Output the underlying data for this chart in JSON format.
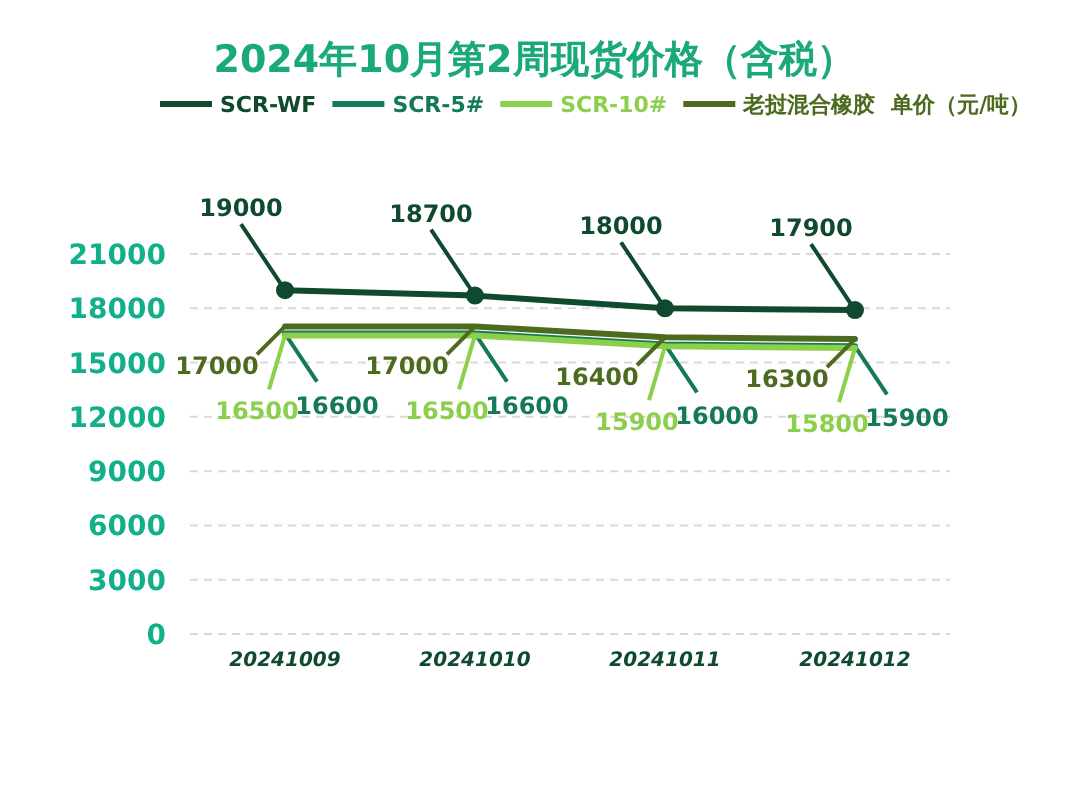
{
  "chart_data": {
    "type": "line",
    "title": "2024年10月第2周现货价格（含税）",
    "annotations": [
      "单价（元/吨）"
    ],
    "categories": [
      "20241009",
      "20241010",
      "20241011",
      "20241012"
    ],
    "series": [
      {
        "name": "SCR-WF",
        "color": "#0f4a2e",
        "values": [
          19000,
          18700,
          18000,
          17900
        ],
        "marker": "circle"
      },
      {
        "name": "SCR-5#",
        "color": "#137a55",
        "values": [
          16600,
          16600,
          16000,
          15900
        ]
      },
      {
        "name": "SCR-10#",
        "color": "#8ccf4a",
        "values": [
          16500,
          16500,
          15900,
          15800
        ]
      },
      {
        "name": "老挝混合橡胶",
        "color": "#4d6b1e",
        "values": [
          17000,
          17000,
          16400,
          16300
        ]
      }
    ],
    "ylim": [
      0,
      21000
    ],
    "yticks": [
      0,
      3000,
      6000,
      9000,
      12000,
      15000,
      18000,
      21000
    ],
    "grid": "y",
    "legend": "top",
    "data_labels": true
  }
}
